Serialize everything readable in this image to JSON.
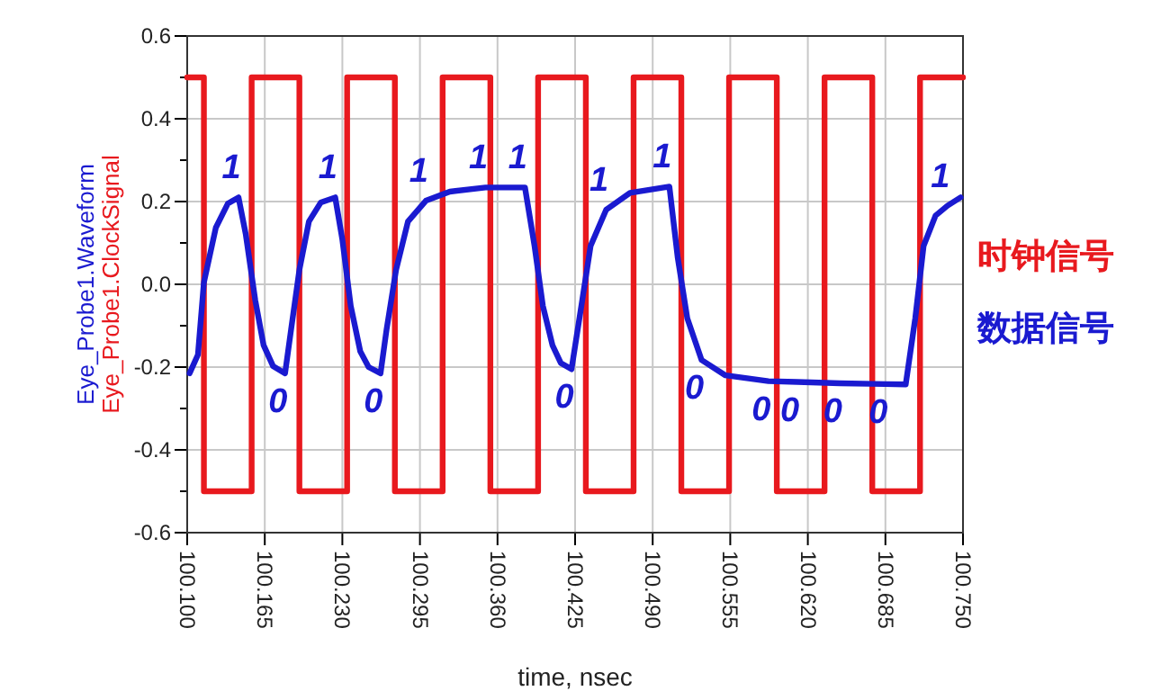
{
  "chart_data": {
    "type": "line",
    "xlabel": "time, nsec",
    "ylabel": "Eye_Probe1.Waveform",
    "annotations": [
      "Eye_Probe1.ClockSignal",
      {
        "text": "1",
        "x": 100.143,
        "y": 0.21
      },
      {
        "text": "0",
        "x": 100.182,
        "y": -0.215
      },
      {
        "text": "1",
        "x": 100.224,
        "y": 0.21
      },
      {
        "text": "0",
        "x": 100.262,
        "y": -0.215
      },
      {
        "text": "1",
        "x": 100.3,
        "y": 0.202
      },
      {
        "text": "1",
        "x": 100.35,
        "y": 0.234
      },
      {
        "text": "1",
        "x": 100.383,
        "y": 0.234
      },
      {
        "text": "0",
        "x": 100.422,
        "y": -0.205
      },
      {
        "text": "1",
        "x": 100.451,
        "y": 0.18
      },
      {
        "text": "1",
        "x": 100.504,
        "y": 0.236
      },
      {
        "text": "0",
        "x": 100.531,
        "y": -0.183
      },
      {
        "text": "0",
        "x": 100.587,
        "y": -0.234
      },
      {
        "text": "0",
        "x": 100.611,
        "y": -0.236
      },
      {
        "text": "0",
        "x": 100.647,
        "y": -0.239
      },
      {
        "text": "0",
        "x": 100.685,
        "y": -0.241
      },
      {
        "text": "1",
        "x": 100.737,
        "y": 0.19
      }
    ],
    "series": [
      {
        "name": "时钟信号",
        "color": "#e8191e",
        "type": "step",
        "x": [
          100.1,
          100.114,
          100.154,
          100.194,
          100.234,
          100.274,
          100.314,
          100.354,
          100.394,
          100.434,
          100.474,
          100.514,
          100.554,
          100.594,
          100.634,
          100.674,
          100.714,
          100.75
        ],
        "values": [
          0.5,
          -0.5,
          0.5,
          -0.5,
          0.5,
          -0.5,
          0.5,
          -0.5,
          0.5,
          -0.5,
          0.5,
          -0.5,
          0.5,
          -0.5,
          0.5,
          -0.5,
          0.5,
          0.5
        ]
      },
      {
        "name": "数据信号",
        "color": "#1a1ad0",
        "x": [
          100.102,
          100.109,
          100.114,
          100.124,
          100.134,
          100.143,
          100.149,
          100.157,
          100.164,
          100.172,
          100.182,
          100.187,
          100.194,
          100.202,
          100.212,
          100.224,
          100.23,
          100.237,
          100.245,
          100.252,
          100.262,
          100.267,
          100.275,
          100.285,
          100.3,
          100.32,
          100.35,
          100.383,
          100.391,
          100.398,
          100.406,
          100.413,
          100.422,
          100.431,
          100.438,
          100.451,
          100.471,
          100.504,
          100.511,
          100.519,
          100.531,
          100.551,
          100.587,
          100.611,
          100.647,
          100.685,
          100.702,
          100.71,
          100.717,
          100.727,
          100.737,
          100.748
        ],
        "values": [
          -0.215,
          -0.17,
          0.005,
          0.137,
          0.195,
          0.21,
          0.122,
          -0.038,
          -0.147,
          -0.198,
          -0.215,
          -0.11,
          0.035,
          0.152,
          0.198,
          0.21,
          0.108,
          -0.052,
          -0.162,
          -0.2,
          -0.215,
          -0.11,
          0.035,
          0.152,
          0.202,
          0.224,
          0.234,
          0.234,
          0.093,
          -0.052,
          -0.147,
          -0.19,
          -0.205,
          -0.038,
          0.093,
          0.18,
          0.221,
          0.236,
          0.064,
          -0.082,
          -0.183,
          -0.22,
          -0.234,
          -0.236,
          -0.239,
          -0.241,
          -0.242,
          -0.082,
          0.093,
          0.166,
          0.19,
          0.21
        ]
      }
    ],
    "xlim": [
      100.1,
      100.75
    ],
    "xticks": [
      {
        "value": 100.1,
        "label": "100.100"
      },
      {
        "value": 100.165,
        "label": "100.165"
      },
      {
        "value": 100.23,
        "label": "100.230"
      },
      {
        "value": 100.295,
        "label": "100.295"
      },
      {
        "value": 100.36,
        "label": "100.360"
      },
      {
        "value": 100.425,
        "label": "100.425"
      },
      {
        "value": 100.49,
        "label": "100.490"
      },
      {
        "value": 100.555,
        "label": "100.555"
      },
      {
        "value": 100.62,
        "label": "100.620"
      },
      {
        "value": 100.685,
        "label": "100.685"
      },
      {
        "value": 100.75,
        "label": "100.750"
      }
    ],
    "ylim": [
      -0.6,
      0.6
    ],
    "yticks": [
      {
        "value": -0.6,
        "label": "-0.6"
      },
      {
        "value": -0.5,
        "label": null
      },
      {
        "value": -0.4,
        "label": "-0.4"
      },
      {
        "value": -0.3,
        "label": null
      },
      {
        "value": -0.2,
        "label": "-0.2"
      },
      {
        "value": -0.1,
        "label": null
      },
      {
        "value": 0,
        "label": "0.0"
      },
      {
        "value": 0.1,
        "label": null
      },
      {
        "value": 0.2,
        "label": "0.2"
      },
      {
        "value": 0.3,
        "label": null
      },
      {
        "value": 0.4,
        "label": "0.4"
      },
      {
        "value": 0.5,
        "label": null
      },
      {
        "value": 0.6,
        "label": "0.6"
      }
    ],
    "grid": true,
    "legend": "right"
  }
}
